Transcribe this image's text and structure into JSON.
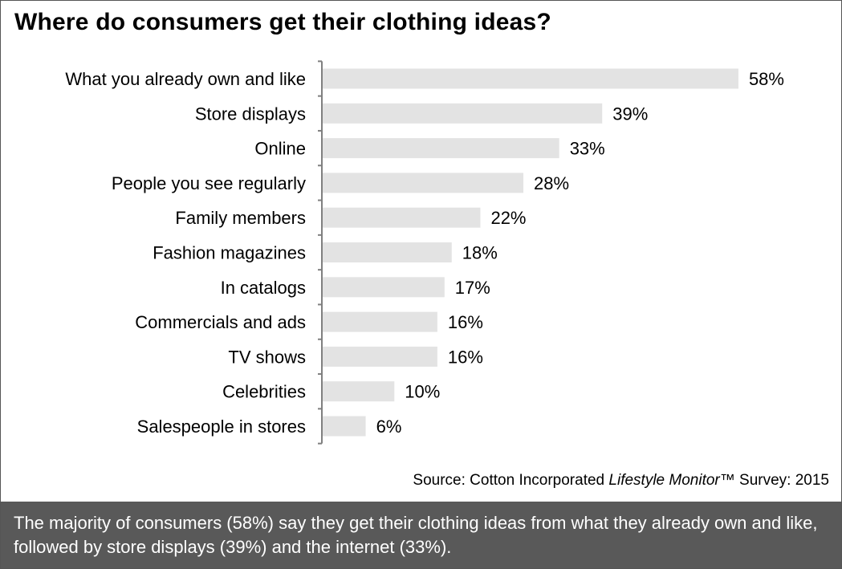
{
  "title": "Where do consumers get their clothing ideas?",
  "chart_data": {
    "type": "bar",
    "orientation": "horizontal",
    "categories": [
      "What you already own and like",
      "Store displays",
      "Online",
      "People you see regularly",
      "Family members",
      "Fashion magazines",
      "In catalogs",
      "Commercials and ads",
      "TV shows",
      "Celebrities",
      "Salespeople in stores"
    ],
    "values": [
      58,
      39,
      33,
      28,
      22,
      18,
      17,
      16,
      16,
      10,
      6
    ],
    "value_labels": [
      "58%",
      "39%",
      "33%",
      "28%",
      "22%",
      "18%",
      "17%",
      "16%",
      "16%",
      "10%",
      "6%"
    ],
    "bar_color": "#e3e3e3",
    "axis_color": "#808080",
    "xlabel": "",
    "ylabel": ""
  },
  "source": {
    "prefix": "Source: Cotton Incorporated ",
    "italic": "Lifestyle Monitor",
    "suffix": "™ Survey: 2015"
  },
  "caption": "The majority of consumers (58%) say they get their clothing ideas from what they already own and like, followed by store displays (39%) and the internet (33%).",
  "colors": {
    "caption_background": "#595959",
    "caption_text": "#ffffff"
  }
}
